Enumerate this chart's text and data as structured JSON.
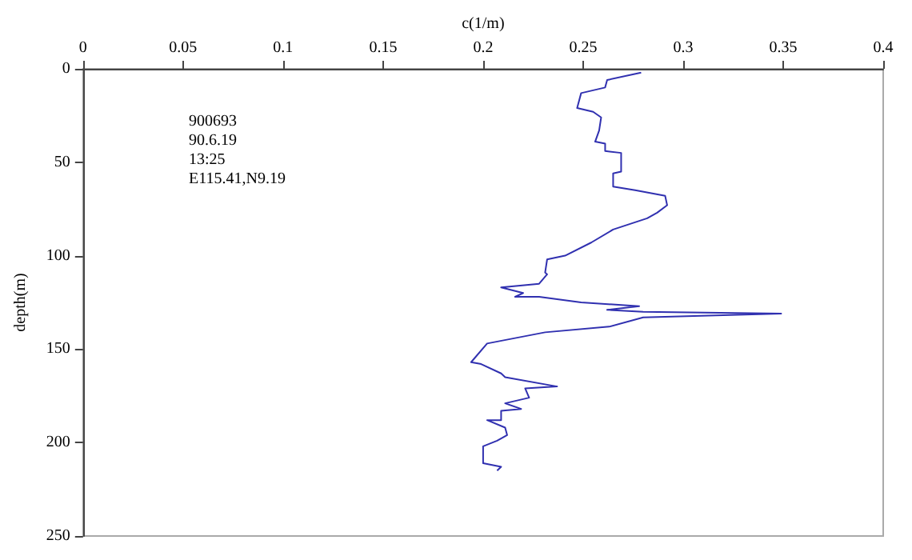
{
  "chart_data": {
    "type": "line",
    "xlabel": "c(1/m)",
    "ylabel": "depth(m)",
    "annotations": [
      "900693",
      "90.6.19",
      "13:25",
      "E115.41,N9.19"
    ],
    "xlim": [
      0,
      0.4
    ],
    "xticks": [
      0,
      0.05,
      0.1,
      0.15,
      0.2,
      0.25,
      0.3,
      0.35,
      0.4
    ],
    "ylim": [
      250,
      0
    ],
    "yticks": [
      0,
      50,
      100,
      150,
      200,
      250
    ],
    "grid": false,
    "series": [
      {
        "color": "#3030b0",
        "x": [
          0.279,
          0.262,
          0.261,
          0.249,
          0.247,
          0.255,
          0.259,
          0.258,
          0.256,
          0.261,
          0.261,
          0.269,
          0.269,
          0.265,
          0.265,
          0.276,
          0.291,
          0.292,
          0.287,
          0.282,
          0.265,
          0.254,
          0.241,
          0.232,
          0.231,
          0.232,
          0.228,
          0.209,
          0.22,
          0.216,
          0.228,
          0.249,
          0.278,
          0.262,
          0.28,
          0.349,
          0.28,
          0.263,
          0.231,
          0.202,
          0.194,
          0.199,
          0.209,
          0.211,
          0.237,
          0.221,
          0.223,
          0.211,
          0.219,
          0.209,
          0.209,
          0.202,
          0.211,
          0.212,
          0.207,
          0.2,
          0.2,
          0.209,
          0.207
        ],
        "values": [
          2,
          6,
          10,
          13,
          21,
          23,
          26,
          33,
          39,
          40,
          44,
          45,
          55,
          56,
          63,
          65,
          68,
          73,
          77,
          80,
          86,
          93,
          100,
          102,
          109,
          110,
          115,
          117,
          120,
          122,
          122,
          125,
          127,
          129,
          130,
          131,
          133,
          138,
          141,
          147,
          157,
          158,
          163,
          165,
          170,
          171,
          176,
          179,
          182,
          183,
          188,
          188,
          192,
          196,
          199,
          202,
          211,
          213,
          215
        ]
      }
    ]
  }
}
